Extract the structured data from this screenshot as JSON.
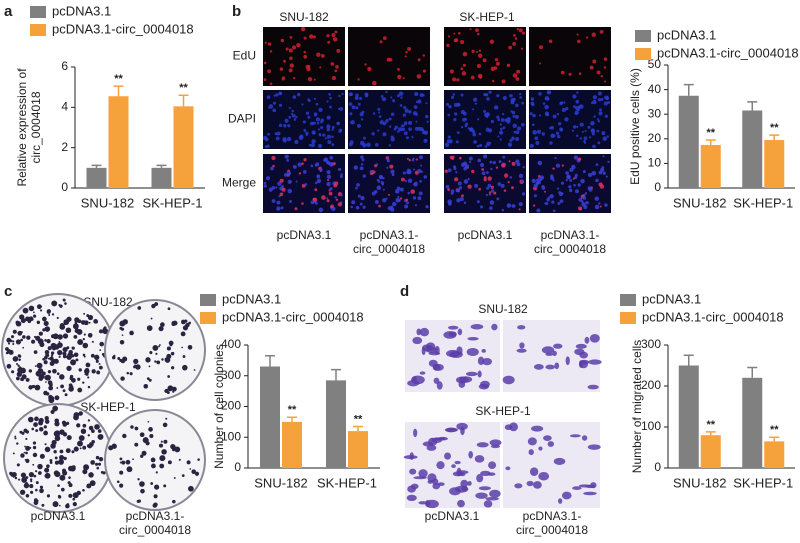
{
  "chart_data": [
    {
      "type": "bar",
      "categories": [
        "SNU-182",
        "SK-HEP-1"
      ],
      "ylabel": [
        "Relative expression of",
        "circ_0004018"
      ],
      "ylim": [
        0,
        6
      ],
      "yticks": [
        0,
        2,
        4,
        6
      ],
      "series": [
        {
          "name": "pcDNA3.1",
          "color": "#808080",
          "values": [
            1,
            1
          ],
          "errors": [
            0.12,
            0.12
          ]
        },
        {
          "name": "pcDNA3.1-circ_0004018",
          "color": "#f5a13c",
          "values": [
            4.55,
            4.05
          ],
          "errors": [
            0.5,
            0.55
          ],
          "significance": [
            "**",
            "**"
          ]
        }
      ]
    },
    {
      "type": "bar",
      "categories": [
        "SNU-182",
        "SK-HEP-1"
      ],
      "ylabel": [
        "EdU positive cells (%)"
      ],
      "ylim": [
        0,
        50
      ],
      "yticks": [
        0,
        10,
        20,
        30,
        40,
        50
      ],
      "series": [
        {
          "name": "pcDNA3.1",
          "color": "#808080",
          "values": [
            37.5,
            31.5
          ],
          "errors": [
            4.5,
            3.5
          ]
        },
        {
          "name": "pcDNA3.1-circ_0004018",
          "color": "#f5a13c",
          "values": [
            17.5,
            19.5
          ],
          "errors": [
            2,
            2
          ],
          "significance": [
            "**",
            "**"
          ]
        }
      ]
    },
    {
      "type": "bar",
      "categories": [
        "SNU-182",
        "SK-HEP-1"
      ],
      "ylabel": [
        "Number of cell colonies"
      ],
      "ylim": [
        0,
        400
      ],
      "yticks": [
        0,
        100,
        200,
        300,
        400
      ],
      "series": [
        {
          "name": "pcDNA3.1",
          "color": "#808080",
          "values": [
            330,
            285
          ],
          "errors": [
            35,
            35
          ]
        },
        {
          "name": "pcDNA3.1-circ_0004018",
          "color": "#f5a13c",
          "values": [
            150,
            120
          ],
          "errors": [
            15,
            15
          ],
          "significance": [
            "**",
            "**"
          ]
        }
      ]
    },
    {
      "type": "bar",
      "categories": [
        "SNU-182",
        "SK-HEP-1"
      ],
      "ylabel": [
        "Number of migrated cells"
      ],
      "ylim": [
        0,
        300
      ],
      "yticks": [
        0,
        100,
        200,
        300
      ],
      "series": [
        {
          "name": "pcDNA3.1",
          "color": "#808080",
          "values": [
            250,
            220
          ],
          "errors": [
            25,
            25
          ]
        },
        {
          "name": "pcDNA3.1-circ_0004018",
          "color": "#f5a13c",
          "values": [
            80,
            65
          ],
          "errors": [
            8,
            10
          ],
          "significance": [
            "**",
            "**"
          ]
        }
      ]
    }
  ],
  "panel_letters": [
    "a",
    "b",
    "c",
    "d"
  ],
  "panel_b": {
    "cell_lines": [
      "SNU-182",
      "SK-HEP-1"
    ],
    "rows": [
      "EdU",
      "DAPI",
      "Merge"
    ],
    "columns": [
      [
        "pcDNA3.1"
      ],
      [
        "pcDNA3.1-",
        "circ_0004018"
      ],
      [
        "pcDNA3.1"
      ],
      [
        "pcDNA3.1-",
        "circ_0004018"
      ]
    ]
  },
  "panel_c": {
    "cell_lines": [
      "SNU-182",
      "SK-HEP-1"
    ],
    "columns": [
      [
        "pcDNA3.1"
      ],
      [
        "pcDNA3.1-",
        "circ_0004018"
      ]
    ]
  },
  "panel_d": {
    "cell_lines": [
      "SNU-182",
      "SK-HEP-1"
    ],
    "columns": [
      [
        "pcDNA3.1"
      ],
      [
        "pcDNA3.1-",
        "circ_0004018"
      ]
    ]
  }
}
